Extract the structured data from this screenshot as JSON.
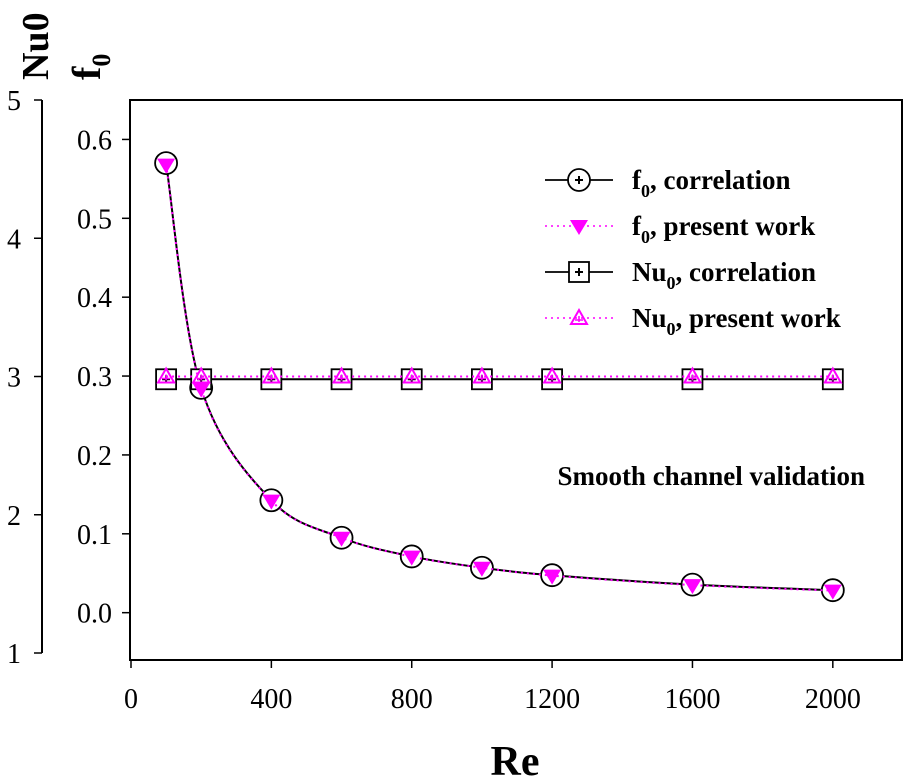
{
  "chart_data": {
    "type": "line",
    "xlabel": "Re",
    "ylabel_left_outer": "Nu0",
    "ylabel_left_inner": "f0",
    "annotation": "Smooth channel validation",
    "xlim": [
      0,
      2200
    ],
    "xticks": [
      "0",
      "400",
      "800",
      "1200",
      "1600",
      "2000"
    ],
    "f0_axis": {
      "ylim": [
        -0.06,
        0.65
      ],
      "ticks": [
        "0.0",
        "0.1",
        "0.2",
        "0.3",
        "0.4",
        "0.5",
        "0.6"
      ]
    },
    "nu0_axis": {
      "ylim": [
        1,
        5
      ],
      "ticks": [
        "1",
        "2",
        "3",
        "4",
        "5"
      ]
    },
    "x": [
      100,
      200,
      400,
      600,
      800,
      1000,
      1200,
      1600,
      2000
    ],
    "series": [
      {
        "name": "f0, correlation",
        "axis": "f0",
        "marker": "circle-plus",
        "line": "solid",
        "color": "#000000",
        "values": [
          0.57,
          0.285,
          0.1425,
          0.095,
          0.0713,
          0.057,
          0.0475,
          0.0356,
          0.0285
        ]
      },
      {
        "name": "f0, present work",
        "axis": "f0",
        "marker": "triangle-down-filled",
        "line": "dotted",
        "color": "#ff00ff",
        "values": [
          0.568,
          0.284,
          0.142,
          0.095,
          0.071,
          0.057,
          0.047,
          0.035,
          0.028
        ]
      },
      {
        "name": "Nu0, correlation",
        "axis": "nu0",
        "marker": "square-plus",
        "line": "solid",
        "color": "#000000",
        "values": [
          2.98,
          2.98,
          2.98,
          2.98,
          2.98,
          2.98,
          2.98,
          2.98,
          2.98
        ]
      },
      {
        "name": "Nu0, present work",
        "axis": "nu0",
        "marker": "triangle-up-open",
        "line": "dotted",
        "color": "#ff00ff",
        "values": [
          3.0,
          3.0,
          3.0,
          3.0,
          3.0,
          3.0,
          3.0,
          3.0,
          3.0
        ]
      }
    ],
    "legend_position": "top-right",
    "grid": false
  }
}
